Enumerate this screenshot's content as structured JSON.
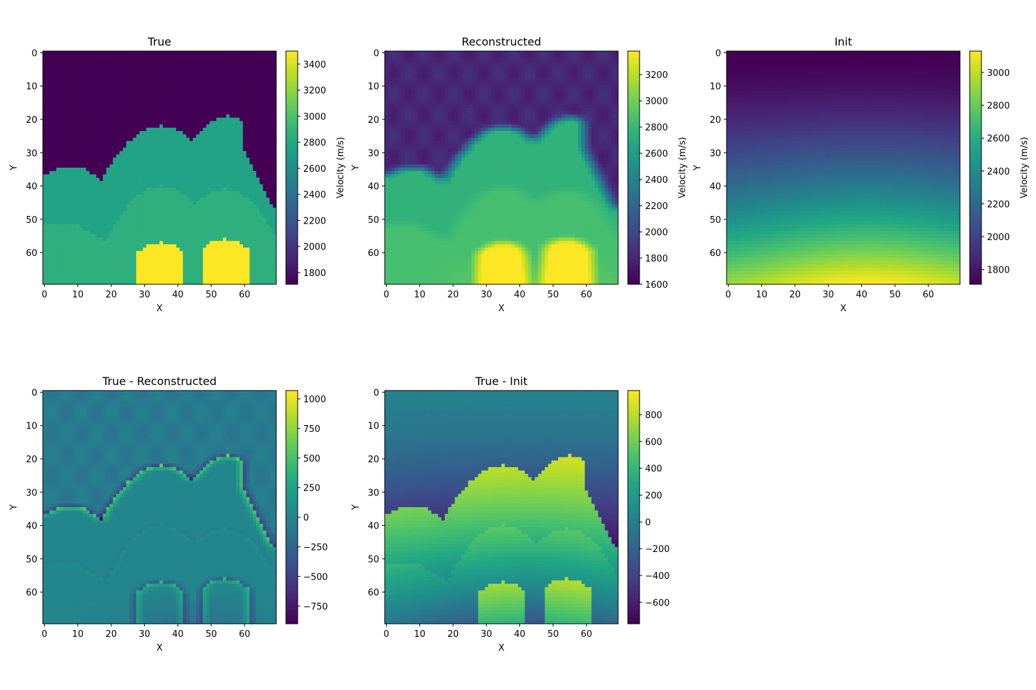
{
  "figure": {
    "panels": [
      {
        "id": "true",
        "title": "True",
        "xlabel": "X",
        "ylabel": "Y",
        "colorbar_label": "Velocity (m/s)",
        "xticks": [
          0,
          10,
          20,
          30,
          40,
          50,
          60
        ],
        "yticks": [
          0,
          10,
          20,
          30,
          40,
          50,
          60
        ],
        "colorbar_range": [
          1710,
          3500
        ],
        "colorbar_ticks": [
          1800,
          2000,
          2200,
          2400,
          2600,
          2800,
          3000,
          3200,
          3400
        ],
        "colormap": "viridis"
      },
      {
        "id": "reconstructed",
        "title": "Reconstructed",
        "xlabel": "X",
        "ylabel": "Y",
        "colorbar_label": "Velocity (m/s)",
        "xticks": [
          0,
          10,
          20,
          30,
          40,
          50,
          60
        ],
        "yticks": [
          0,
          10,
          20,
          30,
          40,
          50,
          60
        ],
        "colorbar_range": [
          1600,
          3380
        ],
        "colorbar_ticks": [
          1600,
          1800,
          2000,
          2200,
          2400,
          2600,
          2800,
          3000,
          3200
        ],
        "colormap": "viridis"
      },
      {
        "id": "init",
        "title": "Init",
        "xlabel": "X",
        "ylabel": "Y",
        "colorbar_label": "Velocity (m/s)",
        "xticks": [
          0,
          10,
          20,
          30,
          40,
          50,
          60
        ],
        "yticks": [
          0,
          10,
          20,
          30,
          40,
          50,
          60
        ],
        "colorbar_range": [
          1710,
          3130
        ],
        "colorbar_ticks": [
          1800,
          2000,
          2200,
          2400,
          2600,
          2800,
          3000
        ],
        "colormap": "viridis"
      },
      {
        "id": "true-minus-reconstructed",
        "title": "True - Reconstructed",
        "xlabel": "X",
        "ylabel": "Y",
        "colorbar_label": "",
        "xticks": [
          0,
          10,
          20,
          30,
          40,
          50,
          60
        ],
        "yticks": [
          0,
          10,
          20,
          30,
          40,
          50,
          60
        ],
        "colorbar_range": [
          -900,
          1070
        ],
        "colorbar_ticks": [
          -750,
          -500,
          -250,
          0,
          250,
          500,
          750,
          1000
        ],
        "colormap": "viridis"
      },
      {
        "id": "true-minus-init",
        "title": "True - Init",
        "xlabel": "X",
        "ylabel": "Y",
        "colorbar_label": "",
        "xticks": [
          0,
          10,
          20,
          30,
          40,
          50,
          60
        ],
        "yticks": [
          0,
          10,
          20,
          30,
          40,
          50,
          60
        ],
        "colorbar_range": [
          -760,
          980
        ],
        "colorbar_ticks": [
          -600,
          -400,
          -200,
          0,
          200,
          400,
          600,
          800
        ],
        "colormap": "viridis"
      }
    ]
  },
  "chart_data": {
    "type": "heatmap",
    "grid": {
      "nx": 70,
      "ny": 70,
      "x_range": [
        0,
        69
      ],
      "y_range": [
        0,
        69
      ],
      "y_inverted": true
    },
    "units": "m/s",
    "model_description": {
      "water_layer_velocity": 1710,
      "ridge_layer_velocity": 2750,
      "middle_layer_velocity": 2850,
      "high_velocity_lenses": 3500,
      "ridge_peaks_x": [
        35,
        55
      ],
      "ridge_peak_depths_y": [
        22,
        19
      ],
      "lens_tops_y": [
        57,
        56
      ],
      "left_shelf_depth_y": 35,
      "right_boundary_depth_y": 47
    }
  }
}
